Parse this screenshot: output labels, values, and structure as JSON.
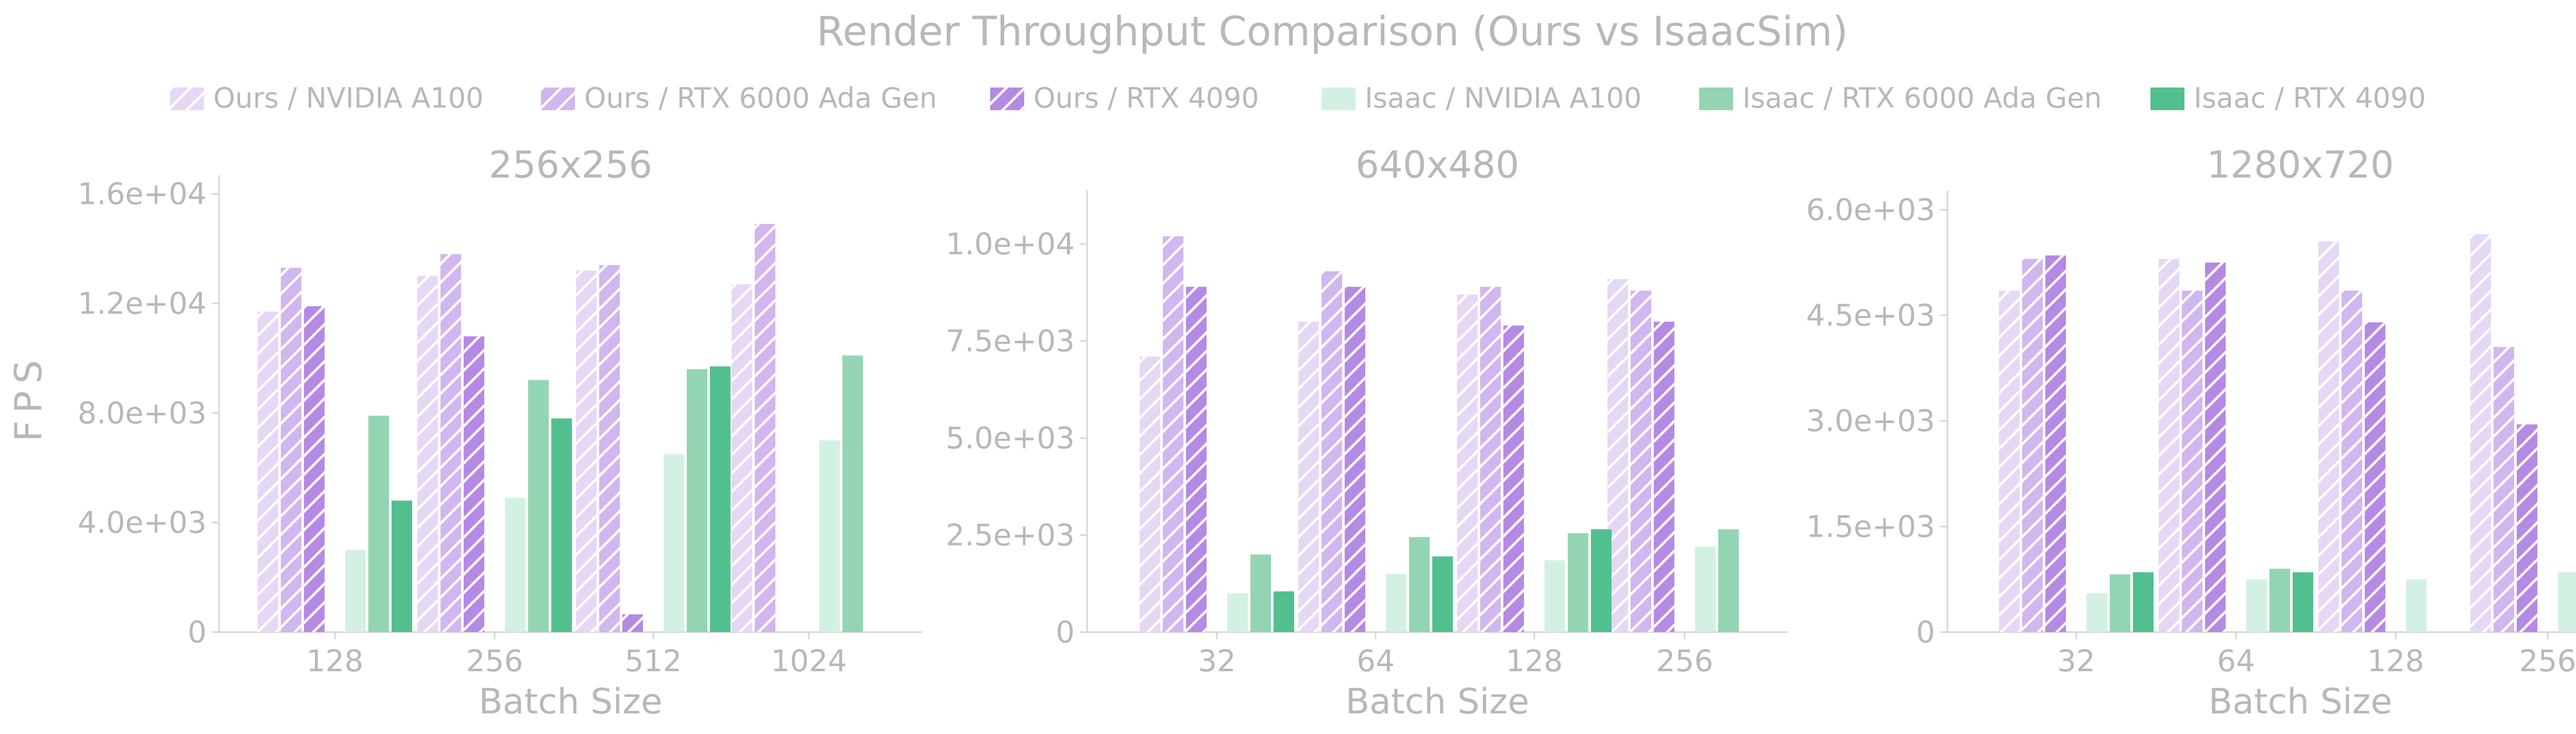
{
  "chart_data": {
    "type": "bar",
    "title": "Render Throughput Comparison (Ours vs IsaacSim)",
    "legend_position": "top-center",
    "ylabel": "FPS",
    "series": [
      {
        "name": "Ours / NVIDIA A100",
        "color": "#e6d8f5",
        "hatch": true
      },
      {
        "name": "Ours / RTX 6000 Ada Gen",
        "color": "#d1b6ef",
        "hatch": true
      },
      {
        "name": "Ours / RTX 4090",
        "color": "#b48ae4",
        "hatch": true
      },
      {
        "name": "Isaac / NVIDIA A100",
        "color": "#d3f1e3",
        "hatch": false
      },
      {
        "name": "Isaac / RTX 6000 Ada Gen",
        "color": "#93d5b3",
        "hatch": false
      },
      {
        "name": "Isaac / RTX 4090",
        "color": "#52c08e",
        "hatch": false
      }
    ],
    "panels": [
      {
        "title": "256x256",
        "xlabel": "Batch Size",
        "categories": [
          "128",
          "256",
          "512",
          "1024"
        ],
        "ylim": [
          0,
          16500
        ],
        "yticks": [
          0,
          4000,
          8000,
          12000,
          16000
        ],
        "ytick_labels": [
          "0",
          "4.0e+03",
          "8.0e+03",
          "1.2e+04",
          "1.6e+04"
        ],
        "values": [
          [
            11700,
            13000,
            13200,
            12700
          ],
          [
            13300,
            13800,
            13400,
            14900
          ],
          [
            11900,
            10800,
            650,
            null
          ],
          [
            3000,
            4900,
            6500,
            7000
          ],
          [
            7900,
            9200,
            9600,
            10100
          ],
          [
            4800,
            7800,
            9700,
            null
          ]
        ]
      },
      {
        "title": "640x480",
        "xlabel": "Batch Size",
        "categories": [
          "32",
          "64",
          "128",
          "256"
        ],
        "ylim": [
          0,
          11250
        ],
        "yticks": [
          0,
          2500,
          5000,
          7500,
          10000
        ],
        "ytick_labels": [
          "0",
          "2.5e+03",
          "5.0e+03",
          "7.5e+03",
          "1.0e+04"
        ],
        "values": [
          [
            7100,
            8000,
            8700,
            9100
          ],
          [
            10200,
            9300,
            8900,
            8800
          ],
          [
            8900,
            8900,
            7900,
            8000
          ],
          [
            1000,
            1500,
            1850,
            2200
          ],
          [
            2000,
            2450,
            2550,
            2650
          ],
          [
            1050,
            1950,
            2650,
            null
          ]
        ]
      },
      {
        "title": "1280x720",
        "xlabel": "Batch Size",
        "categories": [
          "32",
          "64",
          "128",
          "256"
        ],
        "ylim": [
          0,
          6200
        ],
        "yticks": [
          0,
          1500,
          3000,
          4500,
          6000
        ],
        "ytick_labels": [
          "0",
          "1.5e+03",
          "3.0e+03",
          "4.5e+03",
          "6.0e+03"
        ],
        "values": [
          [
            4850,
            5300,
            5550,
            5650
          ],
          [
            5300,
            4850,
            4850,
            4050
          ],
          [
            5350,
            5250,
            4400,
            2950
          ],
          [
            550,
            750,
            750,
            850
          ],
          [
            820,
            900,
            null,
            null
          ],
          [
            850,
            850,
            null,
            null
          ]
        ]
      }
    ]
  }
}
